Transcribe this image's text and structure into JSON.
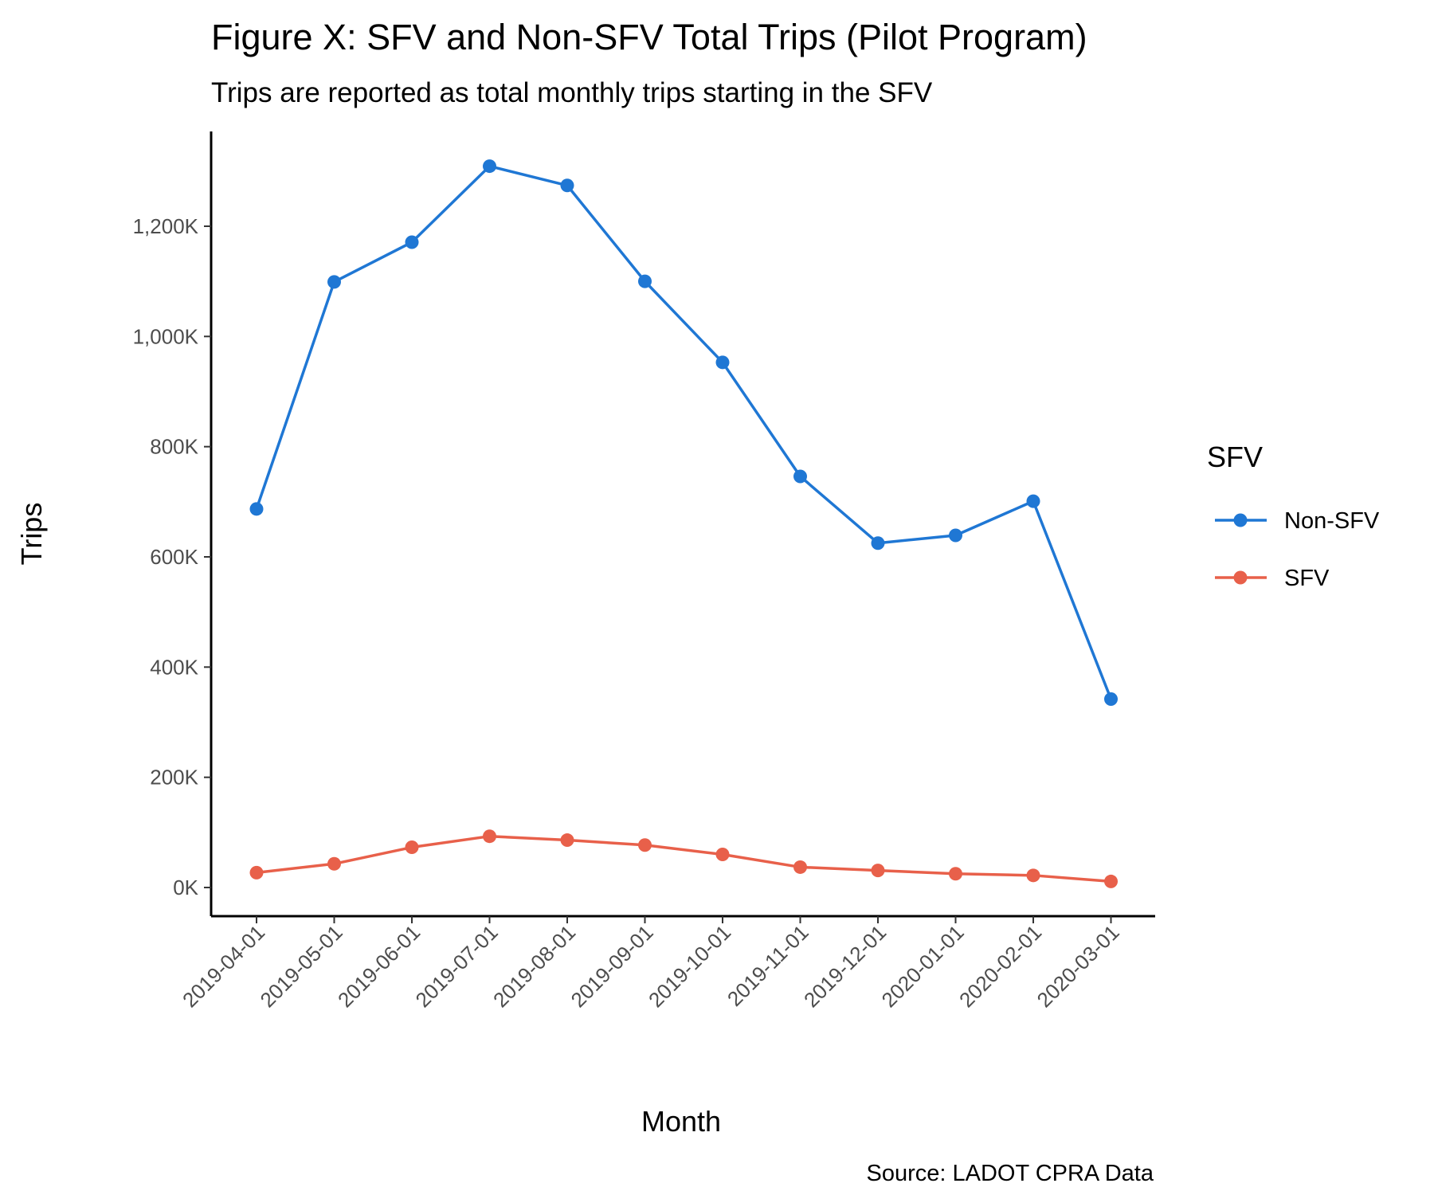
{
  "chart_data": {
    "type": "line",
    "title": "Figure X: SFV and Non-SFV Total Trips (Pilot Program)",
    "subtitle": "Trips are reported as total monthly trips starting in the SFV",
    "caption": "Source: LADOT CPRA Data",
    "xlabel": "Month",
    "ylabel": "Trips",
    "categories": [
      "2019-04-01",
      "2019-05-01",
      "2019-06-01",
      "2019-07-01",
      "2019-08-01",
      "2019-09-01",
      "2019-10-01",
      "2019-11-01",
      "2019-12-01",
      "2020-01-01",
      "2020-02-01",
      "2020-03-01"
    ],
    "ylim": [
      -52000,
      1372000
    ],
    "yticks": [
      0,
      200000,
      400000,
      600000,
      800000,
      1000000,
      1200000
    ],
    "ytick_labels": [
      "0K",
      "200K",
      "400K",
      "600K",
      "800K",
      "1,000K",
      "1,200K"
    ],
    "grid": false,
    "legend": {
      "title": "SFV",
      "position": "right"
    },
    "series": [
      {
        "name": "Non-SFV",
        "color": "#1f77d4",
        "values": [
          687000,
          1099000,
          1171000,
          1309000,
          1274000,
          1100000,
          953000,
          746000,
          625000,
          639000,
          701000,
          342000
        ]
      },
      {
        "name": "SFV",
        "color": "#e8604a",
        "values": [
          27000,
          43000,
          73000,
          93000,
          86000,
          77000,
          60000,
          37000,
          31000,
          25000,
          22000,
          11000
        ]
      }
    ]
  }
}
